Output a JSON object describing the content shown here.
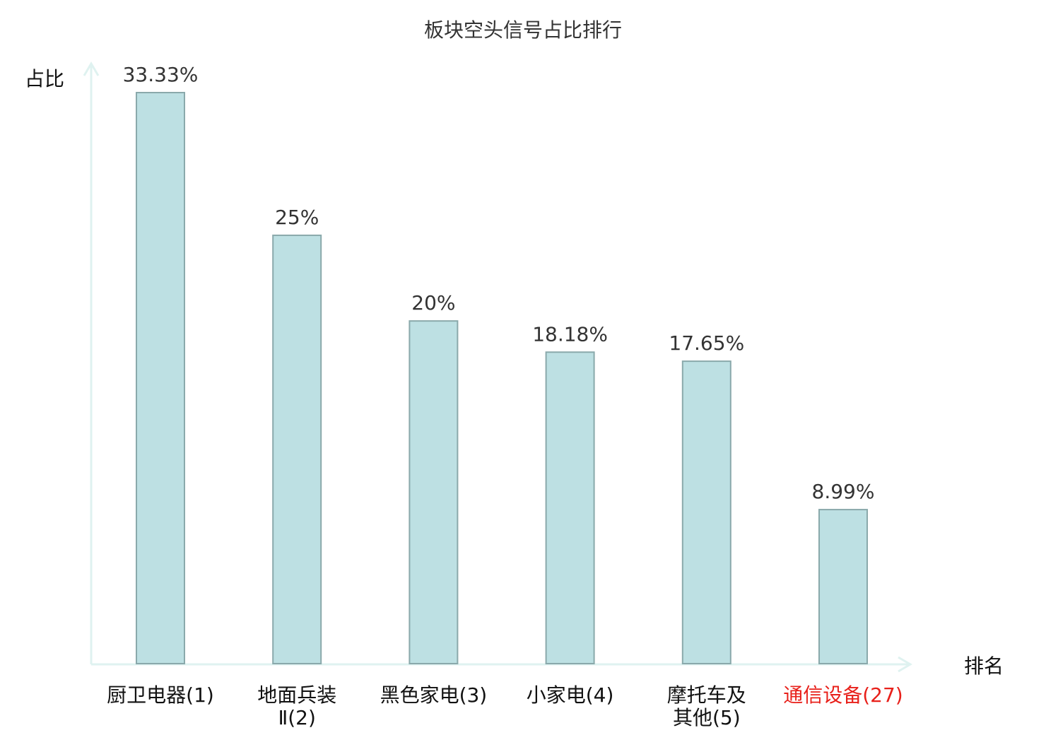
{
  "chart_data": {
    "type": "bar",
    "title": "板块空头信号占比排行",
    "xlabel": "排名",
    "ylabel": "占比",
    "categories": [
      "厨卫电器(1)",
      "地面兵装Ⅱ(2)",
      "黑色家电(3)",
      "小家电(4)",
      "摩托车及其他(5)",
      "通信设备(27)"
    ],
    "category_lines": [
      [
        "厨卫电器(1)"
      ],
      [
        "地面兵装",
        "Ⅱ(2)"
      ],
      [
        "黑色家电(3)"
      ],
      [
        "小家电(4)"
      ],
      [
        "摩托车及",
        "其他(5)"
      ],
      [
        "通信设备(27)"
      ]
    ],
    "values": [
      33.33,
      25,
      20,
      18.18,
      17.65,
      8.99
    ],
    "data_labels": [
      "33.33%",
      "25%",
      "20%",
      "18.18%",
      "17.65%",
      "8.99%"
    ],
    "highlight_index": 5,
    "ylim": [
      0,
      33.33
    ],
    "grid": false,
    "colors": {
      "bar_fill": "#bde0e3",
      "bar_stroke": "#8aa9ab",
      "axis": "#dff2f0",
      "highlight_label": "#e8201a",
      "text": "#333333"
    }
  }
}
